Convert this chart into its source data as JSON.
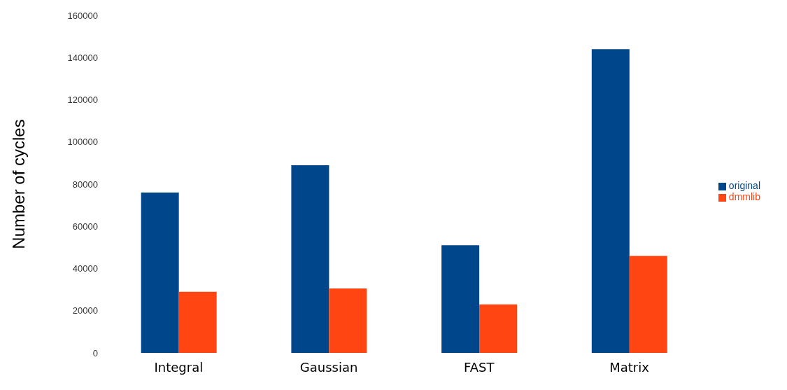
{
  "chart_data": {
    "type": "bar",
    "ylabel": "Number of cycles",
    "categories": [
      "Integral",
      "Gaussian",
      "FAST",
      "Matrix"
    ],
    "series": [
      {
        "name": "original",
        "color": "#00468b",
        "values": [
          76000,
          89000,
          51000,
          144000
        ]
      },
      {
        "name": "dmmlib",
        "color": "#ff4612",
        "values": [
          29000,
          30500,
          23000,
          46000
        ]
      }
    ],
    "ylim": [
      0,
      160000
    ],
    "yticks": [
      0,
      20000,
      40000,
      60000,
      80000,
      100000,
      120000,
      140000,
      160000
    ],
    "grid": false,
    "legend": "right"
  }
}
